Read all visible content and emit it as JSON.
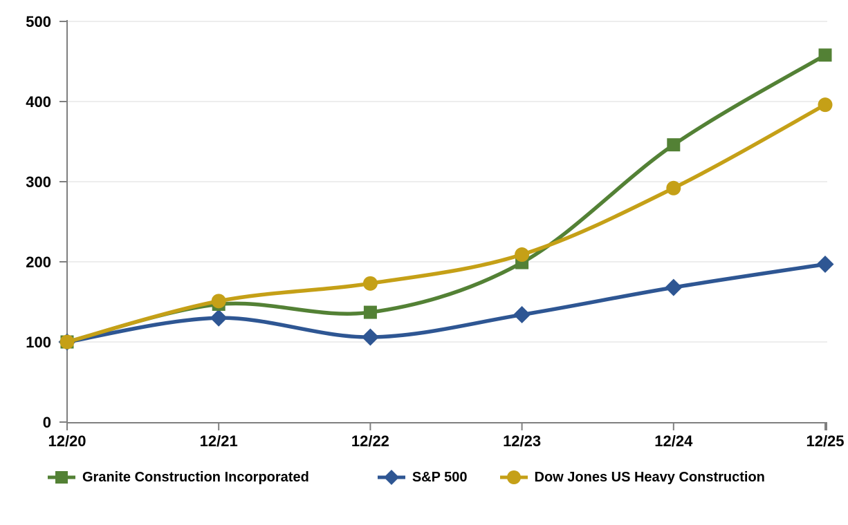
{
  "chart_data": {
    "type": "line",
    "title": "",
    "xlabel": "",
    "ylabel": "",
    "categories": [
      "12/20",
      "12/21",
      "12/22",
      "12/23",
      "12/24",
      "12/25"
    ],
    "y_ticks": [
      "0",
      "100",
      "200",
      "300",
      "400",
      "500"
    ],
    "ylim": [
      0,
      500
    ],
    "grid": "on",
    "legend_position": "bottom",
    "line_style": "smooth",
    "series": [
      {
        "name": "Granite Construction Incorporated",
        "color": "#538135",
        "marker": "square",
        "values": [
          100,
          147,
          137,
          199,
          346,
          458
        ]
      },
      {
        "name": "S&P 500",
        "color": "#2E5693",
        "marker": "diamond",
        "values": [
          100,
          130,
          106,
          134,
          168,
          197
        ]
      },
      {
        "name": "Dow Jones US Heavy Construction",
        "color": "#C5A017",
        "marker": "circle",
        "values": [
          100,
          151,
          173,
          209,
          292,
          396
        ]
      }
    ],
    "colors": {
      "axis": "#7F7F7F",
      "gridline": "#E7E7E7",
      "tick_label": "#000000",
      "background": "#FFFFFF"
    }
  }
}
